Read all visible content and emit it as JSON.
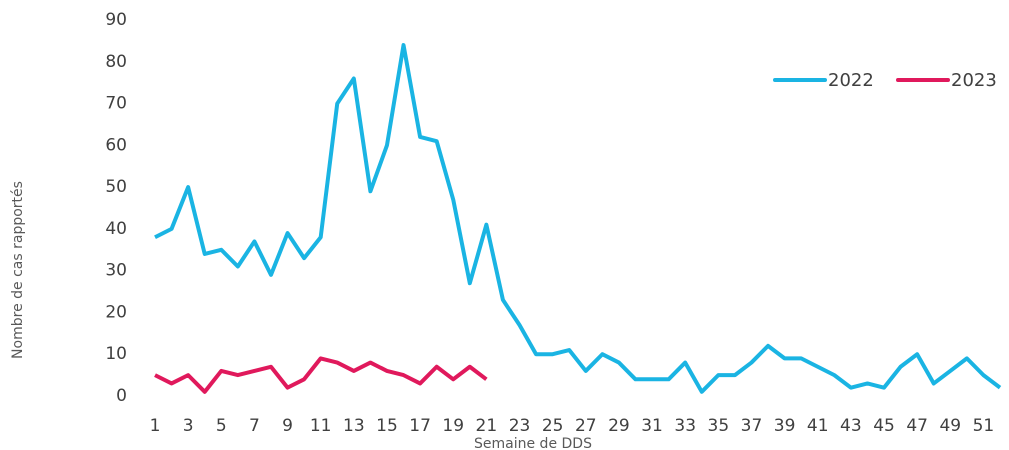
{
  "chart_data": {
    "type": "line",
    "x_label": "Semaine de DDS",
    "y_label": "Nombre de cas rapportés",
    "categories": [
      1,
      null,
      3,
      null,
      5,
      null,
      7,
      null,
      9,
      null,
      11,
      null,
      13,
      null,
      15,
      null,
      17,
      null,
      19,
      null,
      21,
      null,
      23,
      null,
      25,
      null,
      27,
      null,
      29,
      null,
      31,
      null,
      33,
      null,
      35,
      null,
      37,
      null,
      39,
      null,
      41,
      null,
      43,
      null,
      45,
      null,
      47,
      null,
      49,
      null,
      51,
      null
    ],
    "series": [
      {
        "name": "2022",
        "color": "#1ab4e3",
        "values": [
          38,
          40,
          50,
          34,
          35,
          31,
          37,
          29,
          39,
          33,
          38,
          70,
          76,
          49,
          60,
          84,
          62,
          61,
          47,
          27,
          41,
          23,
          17,
          10,
          10,
          11,
          6,
          10,
          8,
          4,
          4,
          4,
          8,
          1,
          5,
          5,
          8,
          12,
          9,
          9,
          7,
          5,
          2,
          3,
          2,
          7,
          10,
          3,
          6,
          9,
          5,
          2
        ]
      },
      {
        "name": "2023",
        "color": "#e0195c",
        "values": [
          5,
          3,
          5,
          1,
          6,
          5,
          6,
          7,
          2,
          4,
          9,
          8,
          6,
          8,
          6,
          5,
          3,
          7,
          4,
          7,
          4,
          null,
          null,
          null,
          null,
          null,
          null,
          null,
          null,
          null,
          null,
          null,
          null,
          null,
          null,
          null,
          null,
          null,
          null,
          null,
          null,
          null,
          null,
          null,
          null,
          null,
          null,
          null,
          null,
          null,
          null,
          null
        ]
      }
    ],
    "ylim": [
      0,
      90
    ],
    "yticks": [
      0,
      10,
      20,
      30,
      40,
      50,
      60,
      70,
      80,
      90
    ],
    "grid": false,
    "legend": "upper right"
  }
}
